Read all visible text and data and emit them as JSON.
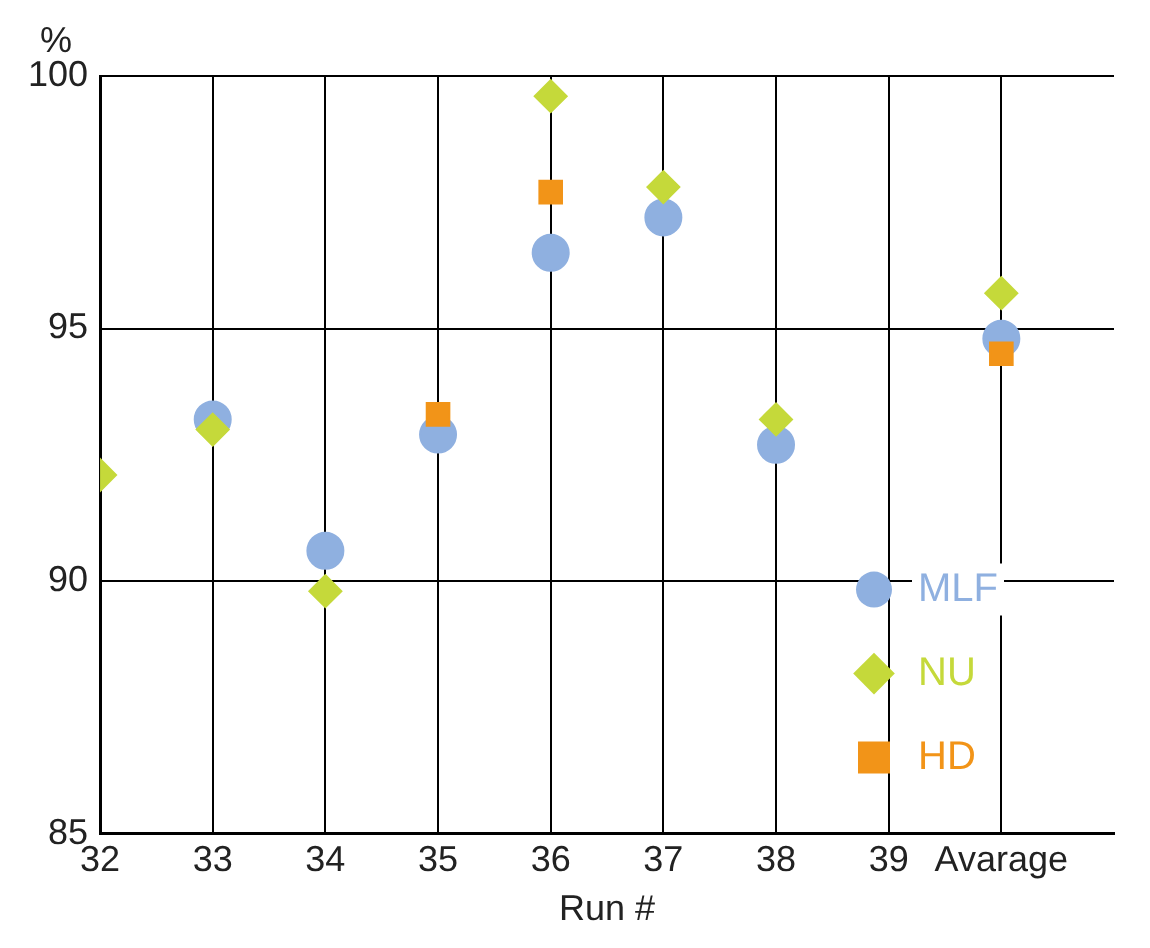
{
  "chart_data": {
    "type": "scatter",
    "xlabel": "Run #",
    "ylabel": "%",
    "categories": [
      "32",
      "33",
      "34",
      "35",
      "36",
      "37",
      "38",
      "39",
      "Avarage"
    ],
    "series": [
      {
        "name": "MLF",
        "color": "#8fb0e0",
        "marker": "circle",
        "values": [
          null,
          93.2,
          90.6,
          92.9,
          96.5,
          97.2,
          92.7,
          null,
          94.8
        ]
      },
      {
        "name": "NU",
        "color": "#c5d93a",
        "marker": "diamond",
        "values": [
          92.1,
          93.0,
          89.8,
          null,
          99.6,
          97.8,
          93.2,
          null,
          95.7
        ]
      },
      {
        "name": "HD",
        "color": "#f29418",
        "marker": "square",
        "values": [
          null,
          null,
          null,
          93.3,
          97.7,
          null,
          null,
          null,
          94.5
        ]
      }
    ],
    "ylim": [
      85,
      100
    ],
    "yticks": [
      85,
      90,
      95,
      100
    ],
    "grid": true,
    "legend": "bottom right"
  }
}
